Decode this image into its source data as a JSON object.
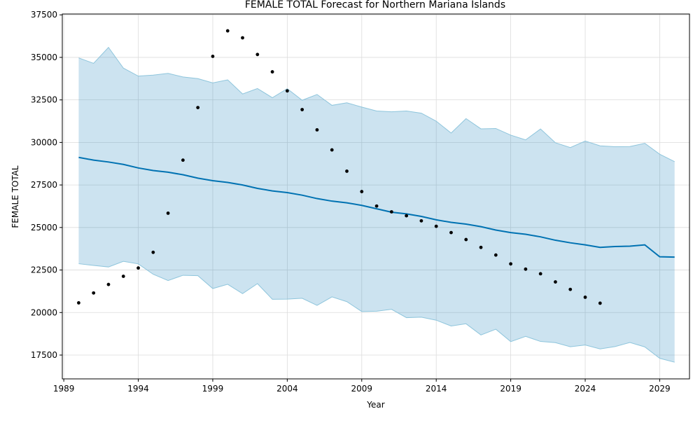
{
  "chart_data": {
    "type": "line",
    "title": "FEMALE TOTAL Forecast for Northern Mariana Islands",
    "xlabel": "Year",
    "ylabel": "FEMALE TOTAL",
    "xlim": [
      1988.9,
      2031.0
    ],
    "ylim": [
      16100,
      37550
    ],
    "x_ticks": [
      1989,
      1994,
      1999,
      2004,
      2009,
      2014,
      2019,
      2024,
      2029
    ],
    "y_ticks": [
      17500,
      20000,
      22500,
      25000,
      27500,
      30000,
      32500,
      35000,
      37500
    ],
    "grid": true,
    "colors": {
      "forecast": "#0072B2",
      "band_fill": "#0072B2",
      "band_edge": "#8ec5dc",
      "observed": "#000000"
    },
    "series": [
      {
        "kind": "observed-points",
        "x": [
          1990,
          1991,
          1992,
          1993,
          1994,
          1995,
          1996,
          1997,
          1998,
          1999,
          2000,
          2001,
          2002,
          2003,
          2004,
          2005,
          2006,
          2007,
          2008,
          2009,
          2010,
          2011,
          2012,
          2013,
          2014,
          2015,
          2016,
          2017,
          2018,
          2019,
          2020,
          2021,
          2022,
          2023,
          2024,
          2025
        ],
        "values": [
          20570,
          21150,
          21650,
          22130,
          22620,
          23540,
          25840,
          28960,
          32050,
          35060,
          36560,
          36150,
          35170,
          34150,
          33030,
          31930,
          30740,
          29560,
          28310,
          27110,
          26260,
          25920,
          25690,
          25390,
          25070,
          24700,
          24290,
          23830,
          23380,
          22860,
          22550,
          22280,
          21800,
          21360,
          20900,
          20550
        ]
      },
      {
        "kind": "forecast-line",
        "x": [
          1990,
          1991,
          1992,
          1993,
          1994,
          1995,
          1996,
          1997,
          1998,
          1999,
          2000,
          2001,
          2002,
          2003,
          2004,
          2005,
          2006,
          2007,
          2008,
          2009,
          2010,
          2011,
          2012,
          2013,
          2014,
          2015,
          2016,
          2017,
          2018,
          2019,
          2020,
          2021,
          2022,
          2023,
          2024,
          2025,
          2026,
          2027,
          2028,
          2029,
          2030
        ],
        "values": [
          29120,
          28960,
          28850,
          28710,
          28500,
          28350,
          28250,
          28100,
          27900,
          27750,
          27650,
          27500,
          27300,
          27150,
          27050,
          26900,
          26700,
          26550,
          26450,
          26300,
          26100,
          25900,
          25800,
          25650,
          25450,
          25300,
          25200,
          25050,
          24850,
          24700,
          24600,
          24450,
          24250,
          24100,
          23980,
          23830,
          23880,
          23900,
          23980,
          23280,
          23260
        ]
      },
      {
        "kind": "uncertainty-upper",
        "x": [
          1990,
          1991,
          1992,
          1993,
          1994,
          1995,
          1996,
          1997,
          1998,
          1999,
          2000,
          2001,
          2002,
          2003,
          2004,
          2005,
          2006,
          2007,
          2008,
          2009,
          2010,
          2011,
          2012,
          2013,
          2014,
          2015,
          2016,
          2017,
          2018,
          2019,
          2020,
          2021,
          2022,
          2023,
          2024,
          2025,
          2026,
          2027,
          2028,
          2029,
          2030
        ],
        "values": [
          34970,
          34650,
          35590,
          34370,
          33900,
          33960,
          34060,
          33850,
          33750,
          33500,
          33680,
          32850,
          33170,
          32630,
          33160,
          32480,
          32820,
          32180,
          32330,
          32080,
          31850,
          31800,
          31850,
          31720,
          31250,
          30550,
          31400,
          30800,
          30820,
          30430,
          30150,
          30790,
          29980,
          29700,
          30080,
          29800,
          29750,
          29760,
          29950,
          29310,
          28870
        ]
      },
      {
        "kind": "uncertainty-lower",
        "x": [
          1990,
          1991,
          1992,
          1993,
          1994,
          1995,
          1996,
          1997,
          1998,
          1999,
          2000,
          2001,
          2002,
          2003,
          2004,
          2005,
          2006,
          2007,
          2008,
          2009,
          2010,
          2011,
          2012,
          2013,
          2014,
          2015,
          2016,
          2017,
          2018,
          2019,
          2020,
          2021,
          2022,
          2023,
          2024,
          2025,
          2026,
          2027,
          2028,
          2029,
          2030
        ],
        "values": [
          22870,
          22770,
          22680,
          23010,
          22860,
          22250,
          21880,
          22190,
          22170,
          21410,
          21660,
          21110,
          21700,
          20780,
          20790,
          20840,
          20420,
          20920,
          20640,
          20060,
          20080,
          20190,
          19700,
          19730,
          19550,
          19210,
          19340,
          18680,
          19020,
          18290,
          18600,
          18300,
          18230,
          17990,
          18090,
          17860,
          18000,
          18240,
          17980,
          17310,
          17080
        ]
      }
    ]
  }
}
